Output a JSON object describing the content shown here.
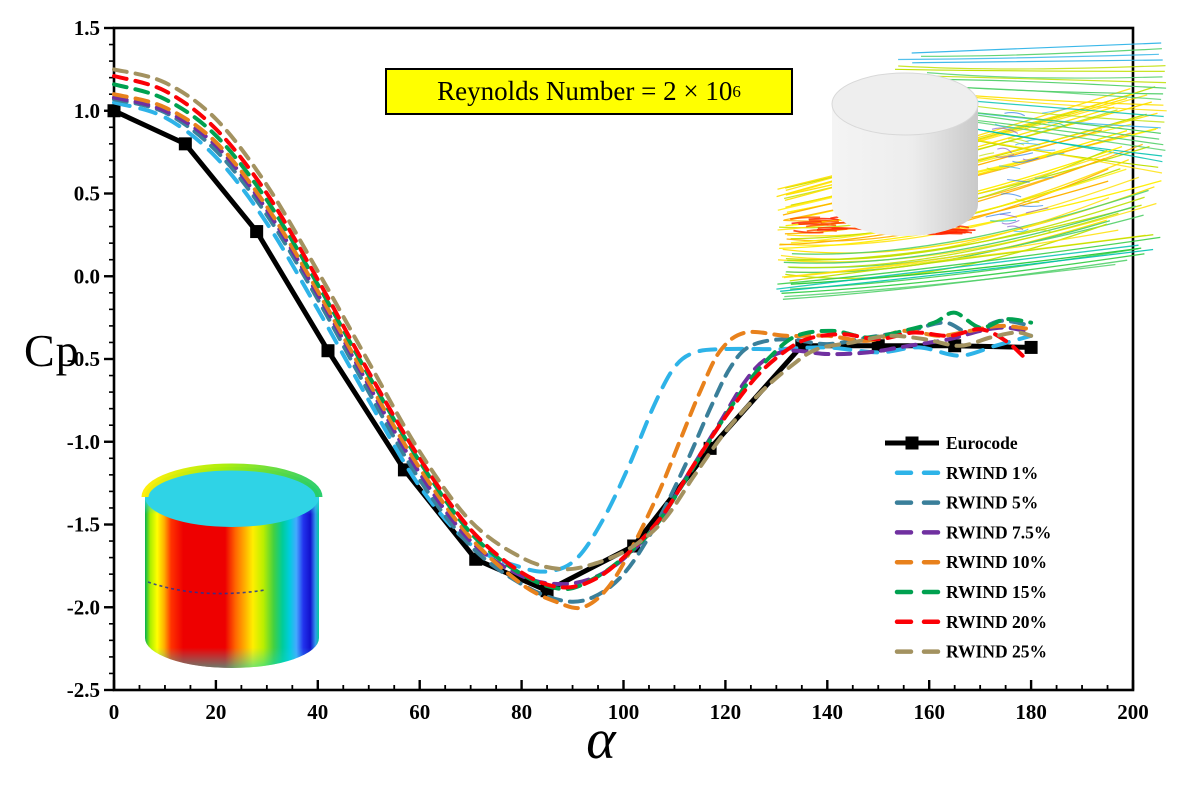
{
  "title": {
    "label": "Reynolds Number =  2 × 10",
    "exponent": "6",
    "background": "#ffff00"
  },
  "axes": {
    "x": {
      "label": "α",
      "min": 0,
      "max": 200,
      "major_tick_step": 20,
      "minor_tick_step": 5,
      "tick_labels": [
        "0",
        "20",
        "40",
        "60",
        "80",
        "100",
        "120",
        "140",
        "160",
        "180",
        "200"
      ]
    },
    "y": {
      "label": "Cp",
      "min": -2.5,
      "max": 1.5,
      "major_tick_step": 0.5,
      "minor_tick_step": 0.1,
      "tick_labels": [
        "1.5",
        "1.0",
        "0.5",
        "0.0",
        "-0.5",
        "-1.0",
        "-1.5",
        "-2.0",
        "-2.5"
      ]
    }
  },
  "chart_data": {
    "type": "line",
    "title": "Reynolds Number = 2 × 10^6",
    "xlabel": "α",
    "ylabel": "Cp",
    "xlim": [
      0,
      200
    ],
    "ylim": [
      -2.5,
      1.5
    ],
    "grid": false,
    "legend_position": "right-middle",
    "series": [
      {
        "name": "Eurocode",
        "color": "#000000",
        "style": "solid",
        "marker": "square",
        "width": 5,
        "points": [
          [
            0,
            1.0
          ],
          [
            14,
            0.8
          ],
          [
            28,
            0.27
          ],
          [
            42,
            -0.45
          ],
          [
            57,
            -1.17
          ],
          [
            71,
            -1.71
          ],
          [
            85,
            -1.9
          ],
          [
            102,
            -1.63
          ],
          [
            117,
            -1.04
          ],
          [
            135,
            -0.42
          ],
          [
            150,
            -0.42
          ],
          [
            165,
            -0.42
          ],
          [
            180,
            -0.43
          ]
        ]
      },
      {
        "name": "RWIND 1%",
        "color": "#2eb3e8",
        "style": "dashed",
        "dash": "16 11",
        "width": 4,
        "points": [
          [
            0,
            1.05
          ],
          [
            10,
            0.96
          ],
          [
            20,
            0.72
          ],
          [
            30,
            0.32
          ],
          [
            40,
            -0.2
          ],
          [
            50,
            -0.75
          ],
          [
            60,
            -1.27
          ],
          [
            70,
            -1.62
          ],
          [
            80,
            -1.76
          ],
          [
            86,
            -1.78
          ],
          [
            91,
            -1.7
          ],
          [
            96,
            -1.47
          ],
          [
            101,
            -1.15
          ],
          [
            106,
            -0.78
          ],
          [
            110,
            -0.55
          ],
          [
            114,
            -0.46
          ],
          [
            120,
            -0.44
          ],
          [
            130,
            -0.44
          ],
          [
            140,
            -0.43
          ],
          [
            150,
            -0.46
          ],
          [
            158,
            -0.43
          ],
          [
            166,
            -0.48
          ],
          [
            173,
            -0.42
          ],
          [
            180,
            -0.36
          ]
        ]
      },
      {
        "name": "RWIND 5%",
        "color": "#3a7f9a",
        "style": "dashed",
        "dash": "13 9",
        "width": 4,
        "points": [
          [
            0,
            1.07
          ],
          [
            10,
            0.99
          ],
          [
            20,
            0.76
          ],
          [
            30,
            0.37
          ],
          [
            40,
            -0.14
          ],
          [
            50,
            -0.7
          ],
          [
            60,
            -1.23
          ],
          [
            70,
            -1.63
          ],
          [
            80,
            -1.86
          ],
          [
            88,
            -1.96
          ],
          [
            94,
            -1.94
          ],
          [
            100,
            -1.8
          ],
          [
            106,
            -1.52
          ],
          [
            112,
            -1.15
          ],
          [
            117,
            -0.8
          ],
          [
            121,
            -0.55
          ],
          [
            125,
            -0.42
          ],
          [
            132,
            -0.38
          ],
          [
            140,
            -0.41
          ],
          [
            148,
            -0.37
          ],
          [
            156,
            -0.33
          ],
          [
            163,
            -0.28
          ],
          [
            168,
            -0.34
          ],
          [
            174,
            -0.27
          ],
          [
            180,
            -0.3
          ]
        ]
      },
      {
        "name": "RWIND 7.5%",
        "color": "#7030a0",
        "style": "dashed",
        "dash": "13 9",
        "width": 4,
        "points": [
          [
            0,
            1.08
          ],
          [
            10,
            1.0
          ],
          [
            20,
            0.79
          ],
          [
            30,
            0.4
          ],
          [
            40,
            -0.11
          ],
          [
            50,
            -0.66
          ],
          [
            60,
            -1.19
          ],
          [
            70,
            -1.6
          ],
          [
            80,
            -1.81
          ],
          [
            88,
            -1.86
          ],
          [
            95,
            -1.81
          ],
          [
            101,
            -1.68
          ],
          [
            107,
            -1.48
          ],
          [
            113,
            -1.18
          ],
          [
            119,
            -0.88
          ],
          [
            124,
            -0.63
          ],
          [
            128,
            -0.5
          ],
          [
            133,
            -0.45
          ],
          [
            140,
            -0.47
          ],
          [
            148,
            -0.46
          ],
          [
            156,
            -0.42
          ],
          [
            164,
            -0.38
          ],
          [
            170,
            -0.33
          ],
          [
            175,
            -0.31
          ],
          [
            180,
            -0.34
          ]
        ]
      },
      {
        "name": "RWIND 10%",
        "color": "#e8811c",
        "style": "dashed",
        "dash": "13 9",
        "width": 4,
        "points": [
          [
            0,
            1.1
          ],
          [
            10,
            1.02
          ],
          [
            20,
            0.81
          ],
          [
            30,
            0.42
          ],
          [
            40,
            -0.09
          ],
          [
            50,
            -0.64
          ],
          [
            60,
            -1.16
          ],
          [
            70,
            -1.58
          ],
          [
            80,
            -1.86
          ],
          [
            87,
            -1.97
          ],
          [
            92,
            -2.0
          ],
          [
            97,
            -1.88
          ],
          [
            102,
            -1.62
          ],
          [
            107,
            -1.3
          ],
          [
            111,
            -1.0
          ],
          [
            115,
            -0.7
          ],
          [
            119,
            -0.45
          ],
          [
            124,
            -0.34
          ],
          [
            132,
            -0.36
          ],
          [
            140,
            -0.36
          ],
          [
            148,
            -0.39
          ],
          [
            155,
            -0.33
          ],
          [
            162,
            -0.36
          ],
          [
            168,
            -0.33
          ],
          [
            174,
            -0.3
          ],
          [
            180,
            -0.32
          ]
        ]
      },
      {
        "name": "RWIND 15%",
        "color": "#00a150",
        "style": "dashed",
        "dash": "13 9",
        "width": 4,
        "points": [
          [
            0,
            1.16
          ],
          [
            10,
            1.07
          ],
          [
            20,
            0.85
          ],
          [
            30,
            0.46
          ],
          [
            40,
            -0.05
          ],
          [
            50,
            -0.6
          ],
          [
            60,
            -1.12
          ],
          [
            70,
            -1.55
          ],
          [
            80,
            -1.8
          ],
          [
            88,
            -1.89
          ],
          [
            94,
            -1.83
          ],
          [
            100,
            -1.7
          ],
          [
            106,
            -1.52
          ],
          [
            112,
            -1.24
          ],
          [
            118,
            -0.94
          ],
          [
            124,
            -0.66
          ],
          [
            129,
            -0.48
          ],
          [
            134,
            -0.36
          ],
          [
            141,
            -0.33
          ],
          [
            148,
            -0.37
          ],
          [
            155,
            -0.33
          ],
          [
            161,
            -0.28
          ],
          [
            165,
            -0.22
          ],
          [
            170,
            -0.31
          ],
          [
            175,
            -0.26
          ],
          [
            180,
            -0.28
          ]
        ]
      },
      {
        "name": "RWIND 20%",
        "color": "#fb0006",
        "style": "dashed",
        "dash": "13 9",
        "width": 4,
        "points": [
          [
            0,
            1.21
          ],
          [
            10,
            1.12
          ],
          [
            20,
            0.89
          ],
          [
            30,
            0.5
          ],
          [
            40,
            -0.02
          ],
          [
            50,
            -0.58
          ],
          [
            60,
            -1.1
          ],
          [
            70,
            -1.53
          ],
          [
            80,
            -1.79
          ],
          [
            88,
            -1.88
          ],
          [
            95,
            -1.82
          ],
          [
            102,
            -1.64
          ],
          [
            108,
            -1.43
          ],
          [
            114,
            -1.13
          ],
          [
            120,
            -0.85
          ],
          [
            126,
            -0.61
          ],
          [
            131,
            -0.47
          ],
          [
            136,
            -0.38
          ],
          [
            143,
            -0.35
          ],
          [
            150,
            -0.38
          ],
          [
            157,
            -0.34
          ],
          [
            164,
            -0.36
          ],
          [
            170,
            -0.32
          ],
          [
            175,
            -0.39
          ],
          [
            179,
            -0.5
          ]
        ]
      },
      {
        "name": "RWIND 25%",
        "color": "#a39260",
        "style": "dashed",
        "dash": "13 9",
        "width": 4,
        "points": [
          [
            0,
            1.25
          ],
          [
            10,
            1.17
          ],
          [
            20,
            0.95
          ],
          [
            30,
            0.55
          ],
          [
            40,
            0.03
          ],
          [
            50,
            -0.52
          ],
          [
            60,
            -1.06
          ],
          [
            70,
            -1.48
          ],
          [
            80,
            -1.7
          ],
          [
            88,
            -1.77
          ],
          [
            95,
            -1.73
          ],
          [
            102,
            -1.63
          ],
          [
            108,
            -1.47
          ],
          [
            114,
            -1.2
          ],
          [
            120,
            -0.94
          ],
          [
            127,
            -0.7
          ],
          [
            133,
            -0.54
          ],
          [
            138,
            -0.44
          ],
          [
            145,
            -0.4
          ],
          [
            152,
            -0.36
          ],
          [
            159,
            -0.38
          ],
          [
            166,
            -0.42
          ],
          [
            172,
            -0.37
          ],
          [
            177,
            -0.34
          ],
          [
            180,
            -0.36
          ]
        ]
      }
    ]
  },
  "insets": {
    "streamline_flow": {
      "depicts": "3D streamlines of wind flow around a grey circular cylinder",
      "palette": [
        "#ffe000",
        "#bfe000",
        "#52d06a",
        "#00c2b0",
        "#35b6e8",
        "#ff3300"
      ]
    },
    "pressure_cylinder": {
      "depicts": "Pressure contour plot on cylinder surface",
      "palette": [
        "#ee0000",
        "#ffb000",
        "#ffff00",
        "#00b050",
        "#2fd3e6",
        "#1122dd"
      ]
    }
  }
}
